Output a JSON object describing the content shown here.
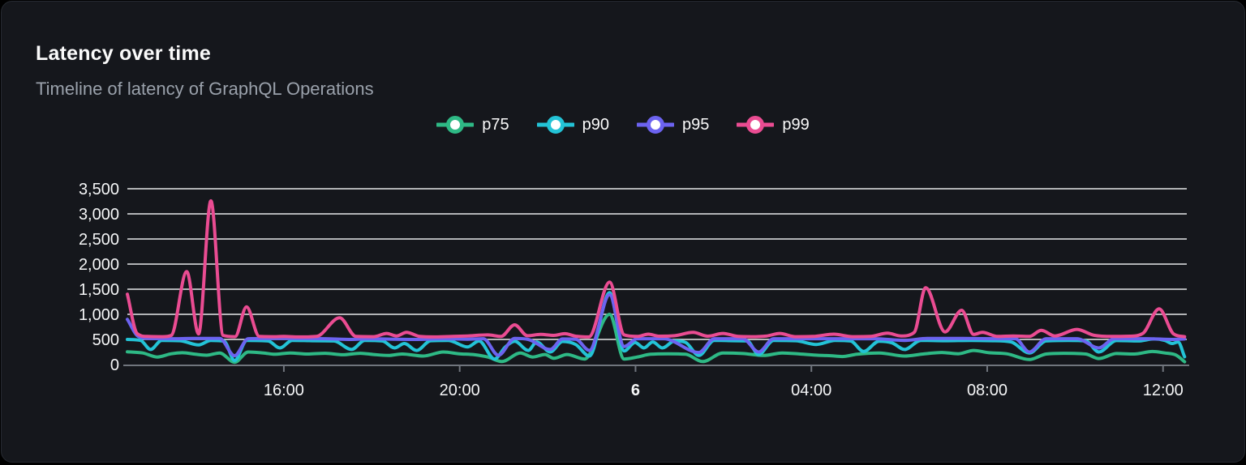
{
  "card": {
    "title": "Latency over time",
    "subtitle": "Timeline of latency of GraphQL Operations"
  },
  "legend": [
    {
      "label": "p75",
      "color": "#2eb985"
    },
    {
      "label": "p90",
      "color": "#23c3d6"
    },
    {
      "label": "p95",
      "color": "#6c63f0"
    },
    {
      "label": "p99",
      "color": "#ea4c92"
    }
  ],
  "colors": {
    "page_background": "#000000",
    "card_background": "#15171c",
    "card_border": "#262a31",
    "title_text": "#fafafa",
    "subtitle_text": "#9aa1ab",
    "gridline": "#e6e8ea",
    "axis_line": "#70757d",
    "tick_label": "#f5f6f7"
  },
  "chart_data": {
    "type": "line",
    "title": "Latency over time",
    "subtitle": "Timeline of latency of GraphQL Operations",
    "xlabel": "",
    "ylabel": "",
    "x_unit": "hours from left edge (~12:30 previous day to ~12:30)",
    "x_range_hours": [
      0,
      24.1
    ],
    "ylim": [
      0,
      3500
    ],
    "grid": "horizontal-white",
    "legend_position": "top-center",
    "yticks": [
      {
        "v": 0,
        "label": "0"
      },
      {
        "v": 500,
        "label": "500"
      },
      {
        "v": 1000,
        "label": "1,000"
      },
      {
        "v": 1500,
        "label": "1,500"
      },
      {
        "v": 2000,
        "label": "2,000"
      },
      {
        "v": 2500,
        "label": "2,500"
      },
      {
        "v": 3000,
        "label": "3,000"
      },
      {
        "v": 3500,
        "label": "3,500"
      }
    ],
    "xticks": [
      {
        "t": 3.56,
        "label": "16:00",
        "bold": false
      },
      {
        "t": 7.56,
        "label": "20:00",
        "bold": false
      },
      {
        "t": 11.56,
        "label": "6",
        "bold": true
      },
      {
        "t": 15.56,
        "label": "04:00",
        "bold": false
      },
      {
        "t": 19.56,
        "label": "08:00",
        "bold": false
      },
      {
        "t": 23.56,
        "label": "12:00",
        "bold": false
      }
    ],
    "series": [
      {
        "name": "p75",
        "color": "#2eb985",
        "points": [
          [
            0,
            255
          ],
          [
            0.35,
            230
          ],
          [
            0.68,
            150
          ],
          [
            1.0,
            215
          ],
          [
            1.25,
            235
          ],
          [
            1.55,
            205
          ],
          [
            1.8,
            185
          ],
          [
            2.1,
            230
          ],
          [
            2.44,
            45
          ],
          [
            2.75,
            250
          ],
          [
            3.1,
            230
          ],
          [
            3.35,
            205
          ],
          [
            3.7,
            230
          ],
          [
            4.1,
            210
          ],
          [
            4.5,
            225
          ],
          [
            4.9,
            195
          ],
          [
            5.3,
            225
          ],
          [
            5.6,
            200
          ],
          [
            5.94,
            180
          ],
          [
            6.25,
            210
          ],
          [
            6.73,
            170
          ],
          [
            7.19,
            250
          ],
          [
            7.55,
            215
          ],
          [
            7.9,
            195
          ],
          [
            8.2,
            150
          ],
          [
            8.52,
            60
          ],
          [
            8.94,
            230
          ],
          [
            9.22,
            150
          ],
          [
            9.5,
            200
          ],
          [
            9.7,
            125
          ],
          [
            10.0,
            200
          ],
          [
            10.4,
            110
          ],
          [
            10.97,
            1000
          ],
          [
            11.3,
            110
          ],
          [
            11.6,
            150
          ],
          [
            11.9,
            205
          ],
          [
            12.3,
            215
          ],
          [
            12.7,
            205
          ],
          [
            13.09,
            60
          ],
          [
            13.55,
            230
          ],
          [
            14.0,
            220
          ],
          [
            14.47,
            180
          ],
          [
            14.9,
            230
          ],
          [
            15.3,
            210
          ],
          [
            15.7,
            185
          ],
          [
            16.0,
            175
          ],
          [
            16.26,
            160
          ],
          [
            16.6,
            205
          ],
          [
            17.1,
            230
          ],
          [
            17.68,
            170
          ],
          [
            18.1,
            210
          ],
          [
            18.53,
            240
          ],
          [
            18.9,
            215
          ],
          [
            19.25,
            280
          ],
          [
            19.6,
            235
          ],
          [
            20.0,
            215
          ],
          [
            20.52,
            100
          ],
          [
            20.9,
            210
          ],
          [
            21.3,
            225
          ],
          [
            21.8,
            210
          ],
          [
            22.1,
            120
          ],
          [
            22.5,
            220
          ],
          [
            22.9,
            210
          ],
          [
            23.32,
            260
          ],
          [
            23.6,
            230
          ],
          [
            23.85,
            190
          ],
          [
            24.05,
            55
          ]
        ]
      },
      {
        "name": "p90",
        "color": "#23c3d6",
        "points": [
          [
            0,
            500
          ],
          [
            0.3,
            480
          ],
          [
            0.53,
            300
          ],
          [
            0.78,
            480
          ],
          [
            1.2,
            475
          ],
          [
            1.62,
            390
          ],
          [
            1.9,
            480
          ],
          [
            2.2,
            465
          ],
          [
            2.44,
            80
          ],
          [
            2.72,
            480
          ],
          [
            3.2,
            470
          ],
          [
            3.47,
            330
          ],
          [
            3.75,
            480
          ],
          [
            4.2,
            475
          ],
          [
            4.7,
            470
          ],
          [
            5.1,
            300
          ],
          [
            5.4,
            480
          ],
          [
            5.8,
            470
          ],
          [
            6.08,
            330
          ],
          [
            6.3,
            420
          ],
          [
            6.58,
            280
          ],
          [
            6.9,
            475
          ],
          [
            7.3,
            480
          ],
          [
            7.74,
            350
          ],
          [
            8.0,
            470
          ],
          [
            8.35,
            110
          ],
          [
            8.6,
            350
          ],
          [
            8.81,
            465
          ],
          [
            9.12,
            280
          ],
          [
            9.31,
            450
          ],
          [
            9.62,
            250
          ],
          [
            9.9,
            460
          ],
          [
            10.2,
            400
          ],
          [
            10.51,
            170
          ],
          [
            10.97,
            1430
          ],
          [
            11.3,
            270
          ],
          [
            11.55,
            440
          ],
          [
            11.75,
            330
          ],
          [
            11.95,
            450
          ],
          [
            12.17,
            330
          ],
          [
            12.45,
            470
          ],
          [
            12.7,
            440
          ],
          [
            13.0,
            180
          ],
          [
            13.35,
            480
          ],
          [
            13.8,
            475
          ],
          [
            14.1,
            470
          ],
          [
            14.36,
            200
          ],
          [
            14.7,
            480
          ],
          [
            15.2,
            475
          ],
          [
            15.67,
            400
          ],
          [
            16.1,
            480
          ],
          [
            16.45,
            470
          ],
          [
            16.75,
            260
          ],
          [
            17.1,
            465
          ],
          [
            17.4,
            430
          ],
          [
            17.68,
            300
          ],
          [
            18.05,
            480
          ],
          [
            18.6,
            475
          ],
          [
            19.2,
            480
          ],
          [
            19.7,
            475
          ],
          [
            20.1,
            450
          ],
          [
            20.52,
            230
          ],
          [
            20.9,
            470
          ],
          [
            21.4,
            480
          ],
          [
            21.8,
            470
          ],
          [
            22.1,
            250
          ],
          [
            22.5,
            478
          ],
          [
            23.0,
            470
          ],
          [
            23.35,
            510
          ],
          [
            23.6,
            480
          ],
          [
            23.77,
            420
          ],
          [
            23.9,
            450
          ],
          [
            24.05,
            155
          ]
        ]
      },
      {
        "name": "p95",
        "color": "#6c63f0",
        "points": [
          [
            0,
            900
          ],
          [
            0.25,
            560
          ],
          [
            0.5,
            520
          ],
          [
            1.0,
            515
          ],
          [
            1.5,
            520
          ],
          [
            2.1,
            520
          ],
          [
            2.44,
            175
          ],
          [
            2.75,
            515
          ],
          [
            3.5,
            520
          ],
          [
            4.5,
            515
          ],
          [
            5.1,
            500
          ],
          [
            5.5,
            515
          ],
          [
            6.1,
            505
          ],
          [
            6.6,
            500
          ],
          [
            7.2,
            515
          ],
          [
            7.74,
            505
          ],
          [
            8.1,
            515
          ],
          [
            8.44,
            185
          ],
          [
            8.81,
            520
          ],
          [
            9.12,
            500
          ],
          [
            9.62,
            300
          ],
          [
            9.9,
            510
          ],
          [
            10.2,
            505
          ],
          [
            10.51,
            280
          ],
          [
            10.97,
            1390
          ],
          [
            11.3,
            360
          ],
          [
            11.6,
            515
          ],
          [
            12.2,
            515
          ],
          [
            13.0,
            240
          ],
          [
            13.35,
            515
          ],
          [
            14.0,
            515
          ],
          [
            14.36,
            250
          ],
          [
            14.7,
            515
          ],
          [
            15.5,
            515
          ],
          [
            16.3,
            515
          ],
          [
            17.0,
            515
          ],
          [
            17.68,
            480
          ],
          [
            18.2,
            520
          ],
          [
            19.0,
            520
          ],
          [
            19.8,
            515
          ],
          [
            20.2,
            515
          ],
          [
            20.52,
            250
          ],
          [
            20.9,
            515
          ],
          [
            21.6,
            515
          ],
          [
            22.1,
            330
          ],
          [
            22.45,
            515
          ],
          [
            23.2,
            515
          ],
          [
            23.77,
            500
          ],
          [
            24.05,
            510
          ]
        ]
      },
      {
        "name": "p99",
        "color": "#ea4c92",
        "points": [
          [
            0,
            1400
          ],
          [
            0.22,
            620
          ],
          [
            0.45,
            560
          ],
          [
            0.8,
            555
          ],
          [
            1.0,
            580
          ],
          [
            1.35,
            1850
          ],
          [
            1.62,
            610
          ],
          [
            1.9,
            3260
          ],
          [
            2.18,
            580
          ],
          [
            2.45,
            555
          ],
          [
            2.71,
            1150
          ],
          [
            3.0,
            560
          ],
          [
            3.3,
            555
          ],
          [
            3.56,
            560
          ],
          [
            3.9,
            550
          ],
          [
            4.3,
            560
          ],
          [
            4.83,
            930
          ],
          [
            5.2,
            560
          ],
          [
            5.6,
            555
          ],
          [
            5.9,
            620
          ],
          [
            6.12,
            570
          ],
          [
            6.35,
            640
          ],
          [
            6.65,
            560
          ],
          [
            7.0,
            550
          ],
          [
            7.4,
            560
          ],
          [
            7.74,
            570
          ],
          [
            8.2,
            590
          ],
          [
            8.5,
            560
          ],
          [
            8.81,
            790
          ],
          [
            9.1,
            575
          ],
          [
            9.4,
            600
          ],
          [
            9.7,
            580
          ],
          [
            9.95,
            615
          ],
          [
            10.2,
            565
          ],
          [
            10.5,
            550
          ],
          [
            10.97,
            1640
          ],
          [
            11.3,
            590
          ],
          [
            11.6,
            560
          ],
          [
            11.85,
            605
          ],
          [
            12.1,
            565
          ],
          [
            12.45,
            575
          ],
          [
            12.87,
            640
          ],
          [
            13.2,
            565
          ],
          [
            13.55,
            620
          ],
          [
            13.9,
            560
          ],
          [
            14.2,
            555
          ],
          [
            14.55,
            570
          ],
          [
            14.84,
            620
          ],
          [
            15.2,
            555
          ],
          [
            15.6,
            560
          ],
          [
            16.07,
            605
          ],
          [
            16.5,
            555
          ],
          [
            16.9,
            560
          ],
          [
            17.29,
            625
          ],
          [
            17.6,
            570
          ],
          [
            17.9,
            640
          ],
          [
            18.16,
            1530
          ],
          [
            18.6,
            650
          ],
          [
            18.98,
            1080
          ],
          [
            19.25,
            600
          ],
          [
            19.45,
            640
          ],
          [
            19.8,
            560
          ],
          [
            20.15,
            570
          ],
          [
            20.52,
            560
          ],
          [
            20.79,
            680
          ],
          [
            21.1,
            570
          ],
          [
            21.6,
            700
          ],
          [
            22.0,
            580
          ],
          [
            22.4,
            560
          ],
          [
            22.8,
            565
          ],
          [
            23.1,
            620
          ],
          [
            23.47,
            1110
          ],
          [
            23.8,
            610
          ],
          [
            24.05,
            555
          ]
        ]
      }
    ]
  }
}
